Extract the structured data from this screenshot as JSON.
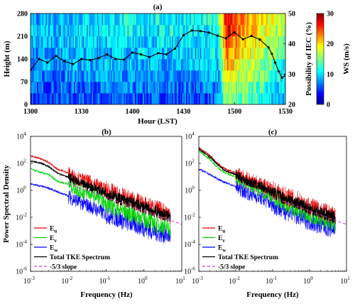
{
  "chart_data": [
    {
      "panel": "(a)",
      "type": "heatmap",
      "xlabel": "Hour (LST)",
      "ylabel": "Height (m)",
      "y2label": "Possibility of IEC (%)",
      "colorbar_label": "WS (m/s)",
      "x_ticks": [
        "1300",
        "1330",
        "1400",
        "1430",
        "1500",
        "1530"
      ],
      "y_ticks": [
        "0",
        "70",
        "140",
        "210",
        "280"
      ],
      "y2_ticks": [
        "20",
        "30",
        "40",
        "50"
      ],
      "colorbar_ticks": [
        "0",
        "10",
        "20",
        "30"
      ],
      "colorbar_range": [
        0,
        30
      ],
      "xlim_minutes": [
        0,
        150
      ],
      "ylim": [
        0,
        280
      ],
      "y2lim": [
        20,
        50
      ],
      "rows_height_m": [
        [
          0,
          35
        ],
        [
          35,
          70
        ],
        [
          70,
          105
        ],
        [
          105,
          140
        ],
        [
          140,
          175
        ],
        [
          175,
          210
        ],
        [
          210,
          245
        ],
        [
          245,
          280
        ]
      ],
      "ws_time_minutes": [
        0,
        30,
        60,
        90,
        100,
        105,
        110,
        115,
        120,
        125,
        130,
        135,
        140,
        150
      ],
      "ws_by_row": [
        [
          5,
          6,
          6,
          6,
          6,
          6,
          7,
          16,
          14,
          13,
          13,
          12,
          11,
          9
        ],
        [
          6,
          7,
          7,
          7,
          7,
          8,
          8,
          17,
          15,
          14,
          14,
          13,
          12,
          10
        ],
        [
          7,
          8,
          8,
          8,
          8,
          9,
          9,
          19,
          17,
          16,
          16,
          15,
          13,
          11
        ],
        [
          8,
          9,
          9,
          9,
          9,
          10,
          10,
          21,
          19,
          18,
          17,
          16,
          14,
          12
        ],
        [
          8,
          9,
          10,
          10,
          10,
          10,
          11,
          23,
          21,
          19,
          18,
          17,
          15,
          13
        ],
        [
          9,
          10,
          10,
          10,
          10,
          11,
          11,
          25,
          22,
          20,
          19,
          18,
          16,
          14
        ],
        [
          9,
          10,
          11,
          11,
          11,
          11,
          12,
          27,
          24,
          21,
          20,
          19,
          17,
          15
        ],
        [
          9,
          10,
          11,
          11,
          11,
          12,
          12,
          28,
          25,
          22,
          21,
          20,
          18,
          16
        ]
      ],
      "iec_series": {
        "x_minutes": [
          0,
          5,
          10,
          15,
          20,
          25,
          30,
          35,
          40,
          45,
          50,
          55,
          60,
          65,
          70,
          75,
          80,
          85,
          90,
          95,
          100,
          105,
          110,
          115,
          120,
          125,
          130,
          135,
          140,
          142,
          144,
          146,
          148,
          150
        ],
        "y_percent": [
          31.3,
          35.0,
          33.8,
          36.0,
          34.2,
          33.3,
          35.0,
          34.6,
          35.3,
          36.5,
          35.0,
          34.8,
          37.1,
          36.5,
          35.6,
          36.9,
          36.5,
          38.4,
          42.8,
          44.4,
          44.2,
          43.7,
          42.7,
          41.8,
          43.8,
          41.5,
          42.6,
          41.4,
          38.8,
          36.7,
          33.8,
          30.9,
          28.8,
          29.6
        ]
      }
    },
    {
      "panel": "(b)",
      "type": "line",
      "xscale": "log",
      "yscale": "log",
      "xlabel": "Frequency (Hz)",
      "ylabel": "Power Spectral Density",
      "xlim": [
        0.001,
        10
      ],
      "ylim": [
        1e-06,
        10000
      ],
      "legend_position": "lower-left",
      "series": [
        {
          "name": "Eu",
          "color": "#e00000",
          "freq": [
            0.001,
            0.002,
            0.003,
            0.005,
            0.01,
            0.02,
            0.05,
            0.1,
            0.2,
            0.5,
            1,
            2,
            5
          ],
          "psd": [
            350,
            220,
            120,
            40,
            20,
            7,
            3.5,
            1.2,
            0.5,
            0.2,
            0.1,
            0.05,
            0.02
          ]
        },
        {
          "name": "Ev",
          "color": "#00d000",
          "freq": [
            0.001,
            0.002,
            0.003,
            0.005,
            0.01,
            0.02,
            0.05,
            0.1,
            0.2,
            0.5,
            1,
            2,
            5
          ],
          "psd": [
            40,
            20,
            15,
            5,
            3,
            1,
            0.5,
            0.12,
            0.05,
            0.02,
            0.01,
            0.004,
            0.002
          ]
        },
        {
          "name": "Ew",
          "color": "#0000ff",
          "freq": [
            0.001,
            0.002,
            0.003,
            0.005,
            0.01,
            0.02,
            0.05,
            0.1,
            0.2,
            0.5,
            1,
            2,
            5
          ],
          "psd": [
            3,
            2,
            1.5,
            0.8,
            0.4,
            0.15,
            0.05,
            0.02,
            0.01,
            0.004,
            0.002,
            0.001,
            0.0005
          ]
        },
        {
          "name": "Total TKE Spectrum",
          "color": "#000000",
          "freq": [
            0.001,
            0.002,
            0.003,
            0.005,
            0.01,
            0.02,
            0.05,
            0.1,
            0.2,
            0.5,
            1,
            2,
            5
          ],
          "psd": [
            150,
            100,
            60,
            20,
            10,
            3.5,
            1.6,
            0.7,
            0.3,
            0.12,
            0.06,
            0.03,
            0.012
          ]
        },
        {
          "name": "-5/3 slope",
          "color": "#d633d6",
          "dashed": true,
          "freq": [
            0.01,
            10
          ],
          "psd": [
            3,
            0.003
          ]
        }
      ]
    },
    {
      "panel": "(c)",
      "type": "line",
      "xscale": "log",
      "yscale": "log",
      "xlabel": "Frequency (Hz)",
      "xlim": [
        0.001,
        10
      ],
      "ylim": [
        1e-06,
        10000
      ],
      "legend_position": "lower-left",
      "series": [
        {
          "name": "Eu",
          "color": "#e00000",
          "freq": [
            0.001,
            0.002,
            0.003,
            0.005,
            0.01,
            0.02,
            0.05,
            0.1,
            0.2,
            0.5,
            1,
            2,
            5
          ],
          "psd": [
            1500,
            400,
            120,
            40,
            20,
            8,
            3,
            1.2,
            0.5,
            0.2,
            0.08,
            0.04,
            0.015
          ]
        },
        {
          "name": "Ev",
          "color": "#00d000",
          "freq": [
            0.001,
            0.002,
            0.003,
            0.005,
            0.01,
            0.02,
            0.05,
            0.1,
            0.2,
            0.5,
            1,
            2,
            5
          ],
          "psd": [
            900,
            200,
            60,
            20,
            10,
            3,
            1,
            0.4,
            0.15,
            0.05,
            0.02,
            0.01,
            0.004
          ]
        },
        {
          "name": "Ew",
          "color": "#0000ff",
          "freq": [
            0.001,
            0.002,
            0.003,
            0.005,
            0.01,
            0.02,
            0.05,
            0.1,
            0.2,
            0.5,
            1,
            2,
            5
          ],
          "psd": [
            40,
            15,
            8,
            4,
            2,
            0.8,
            0.3,
            0.1,
            0.04,
            0.015,
            0.006,
            0.003,
            0.0015
          ]
        },
        {
          "name": "Total TKE Spectrum",
          "color": "#000000",
          "freq": [
            0.001,
            0.002,
            0.003,
            0.005,
            0.01,
            0.02,
            0.05,
            0.1,
            0.2,
            0.5,
            1,
            2,
            5
          ],
          "psd": [
            1200,
            300,
            100,
            30,
            15,
            5,
            2,
            0.8,
            0.3,
            0.12,
            0.05,
            0.025,
            0.01
          ]
        },
        {
          "name": "-5/3 slope",
          "color": "#d633d6",
          "dashed": true,
          "freq": [
            0.01,
            10
          ],
          "psd": [
            3,
            0.003
          ]
        }
      ]
    }
  ],
  "log_ticks": {
    "x": [
      {
        "base": "10",
        "exp": "-3"
      },
      {
        "base": "10",
        "exp": "-2"
      },
      {
        "base": "10",
        "exp": "-1"
      },
      {
        "base": "10",
        "exp": "0"
      },
      {
        "base": "10",
        "exp": "1"
      }
    ],
    "y": [
      {
        "base": "10",
        "exp": "-6"
      },
      {
        "base": "10",
        "exp": "-4"
      },
      {
        "base": "10",
        "exp": "-2"
      },
      {
        "base": "10",
        "exp": "0"
      },
      {
        "base": "10",
        "exp": "2"
      },
      {
        "base": "10",
        "exp": "4"
      }
    ]
  },
  "legend_labels": [
    {
      "main": "E",
      "sub": "u"
    },
    {
      "main": "E",
      "sub": "v"
    },
    {
      "main": "E",
      "sub": "w"
    },
    {
      "main": "Total TKE Spectrum",
      "sub": ""
    },
    {
      "main": "-5/3 slope",
      "sub": ""
    }
  ],
  "colors": {
    "Eu": "#e00000",
    "Ev": "#00d000",
    "Ew": "#0000ff",
    "total": "#000000",
    "slope": "#d633d6"
  }
}
